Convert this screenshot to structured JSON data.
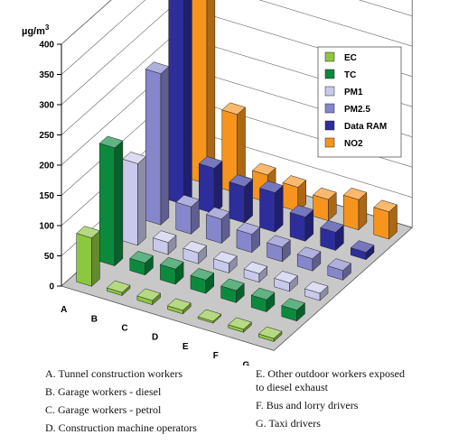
{
  "chart_data": {
    "type": "bar",
    "subtype": "3d-grouped",
    "ylabel": "µg/m",
    "ylabel_superscript": "3",
    "ylim": [
      0,
      400
    ],
    "yticks": [
      0,
      50,
      100,
      150,
      200,
      250,
      300,
      350,
      400
    ],
    "categories": [
      "A",
      "B",
      "C",
      "D",
      "E",
      "F",
      "G"
    ],
    "series": [
      {
        "name": "EC",
        "color": "#8dc63f",
        "values": [
          80,
          5,
          7,
          6,
          3,
          5,
          5
        ]
      },
      {
        "name": "TC",
        "color": "#0b8a3e",
        "values": [
          195,
          20,
          25,
          22,
          20,
          20,
          18
        ]
      },
      {
        "name": "PM1",
        "color": "#c9c9ec",
        "values": [
          135,
          20,
          18,
          16,
          14,
          14,
          12
        ]
      },
      {
        "name": "PM2.5",
        "color": "#8686cc",
        "values": [
          250,
          45,
          40,
          30,
          24,
          20,
          16
        ]
      },
      {
        "name": "Data RAM",
        "color": "#2d2d9b",
        "values": [
          400,
          75,
          60,
          65,
          40,
          30,
          12
        ]
      },
      {
        "name": "NO2",
        "color": "#f7941d",
        "values": [
          380,
          130,
          45,
          40,
          35,
          50,
          45
        ]
      }
    ],
    "legend_position": "top-right",
    "grid": true
  },
  "caption": {
    "left": [
      "A. Tunnel construction workers",
      "B. Garage workers - diesel",
      "C. Garage workers - petrol",
      "D. Construction machine operators"
    ],
    "right": [
      "E. Other outdoor workers exposed\nto diesel exhaust",
      "F. Bus and lorry drivers",
      "G. Taxi drivers"
    ]
  }
}
